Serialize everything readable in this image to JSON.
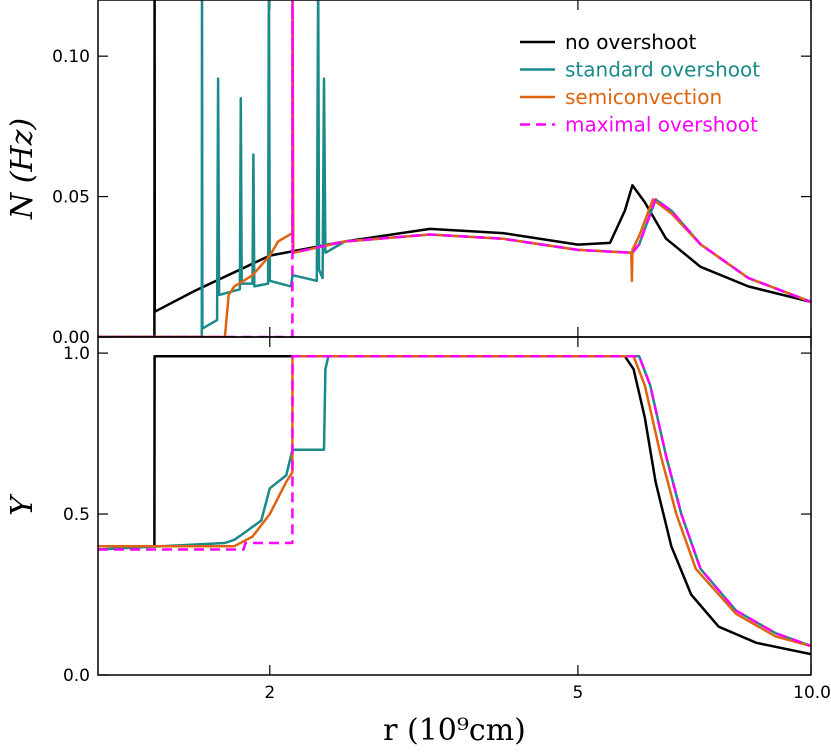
{
  "chart_data": [
    {
      "type": "line",
      "ylabel": "N (Hz)",
      "log_x": true,
      "legend": "upper right",
      "ylim": [
        0,
        0.12
      ],
      "yticks": [
        {
          "value": 0,
          "label": "0.00"
        },
        {
          "value": 0.05,
          "label": "0.05"
        },
        {
          "value": 0.1,
          "label": "0.10"
        }
      ],
      "series": [
        {
          "name": "no overshoot",
          "color": "#000000",
          "dashed": false,
          "x": [
            1.2,
            1.419,
            1.42,
            1.421,
            1.6,
            2.0,
            2.5,
            3.22,
            4.0,
            5.0,
            5.5,
            5.75,
            5.88,
            6.1,
            6.5,
            7.2,
            8.3,
            10
          ],
          "values": [
            0,
            0,
            0.13,
            0.009,
            0.0164,
            0.029,
            0.034,
            0.0385,
            0.037,
            0.0329,
            0.0335,
            0.045,
            0.054,
            0.048,
            0.035,
            0.025,
            0.018,
            0.0125
          ]
        },
        {
          "name": "standard overshoot",
          "color": "#1a8a8a",
          "dashed": false,
          "x": [
            1.2,
            1.634,
            1.635,
            1.637,
            1.71,
            1.715,
            1.72,
            1.83,
            1.835,
            1.84,
            1.9,
            1.905,
            1.91,
            1.99,
            1.995,
            2.0,
            2.13,
            2.14,
            2.3,
            2.31,
            2.315,
            2.34,
            2.35,
            2.36,
            2.5,
            3.22,
            4.0,
            5.0,
            5.88,
            6.0,
            6.3,
            6.6,
            7.2,
            8.3,
            10
          ],
          "values": [
            0,
            0,
            0.13,
            0.003,
            0.006,
            0.092,
            0.015,
            0.017,
            0.085,
            0.019,
            0.019,
            0.065,
            0.018,
            0.019,
            0.13,
            0.02,
            0.018,
            0.022,
            0.02,
            0.13,
            0.024,
            0.021,
            0.092,
            0.03,
            0.034,
            0.0365,
            0.035,
            0.031,
            0.03,
            0.033,
            0.049,
            0.045,
            0.033,
            0.021,
            0.0125
          ]
        },
        {
          "name": "semiconvection",
          "color": "#e0640f",
          "dashed": false,
          "x": [
            1.2,
            1.75,
            1.77,
            1.8,
            1.85,
            1.9,
            2.0,
            2.05,
            2.139,
            2.14,
            2.145,
            2.5,
            3.22,
            4.0,
            5.0,
            5.86,
            5.87,
            5.88,
            6.0,
            6.25,
            6.6,
            7.2,
            8.3,
            10
          ],
          "values": [
            0,
            0,
            0.015,
            0.018,
            0.02,
            0.022,
            0.029,
            0.034,
            0.037,
            0.13,
            0.03,
            0.034,
            0.0365,
            0.035,
            0.031,
            0.03,
            0.02,
            0.031,
            0.036,
            0.049,
            0.044,
            0.033,
            0.021,
            0.0125
          ]
        },
        {
          "name": "maximal overshoot",
          "color": "#ff00ff",
          "dashed": true,
          "x": [
            1.2,
            2.139,
            2.14,
            2.141,
            2.5,
            3.22,
            4.0,
            5.0,
            5.88,
            6.0,
            6.3,
            6.6,
            7.2,
            8.3,
            10
          ],
          "values": [
            0,
            0,
            0.13,
            0.03,
            0.034,
            0.0365,
            0.035,
            0.031,
            0.03,
            0.033,
            0.049,
            0.045,
            0.033,
            0.021,
            0.0125
          ]
        }
      ]
    },
    {
      "type": "line",
      "ylabel": "Y",
      "xlabel": "r (10⁹cm)",
      "log_x": true,
      "xlim": [
        1.2,
        10
      ],
      "xticks": [
        2,
        5,
        {
          "value": 10,
          "label": "10.0"
        }
      ],
      "ylim": [
        0,
        1.05
      ],
      "yticks": [
        {
          "value": 0,
          "label": "0.0"
        },
        {
          "value": 0.5,
          "label": "0.5"
        },
        {
          "value": 1,
          "label": "1.0"
        }
      ],
      "series": [
        {
          "color": "#000000",
          "dashed": false,
          "x": [
            1.2,
            1.419,
            1.42,
            5.75,
            5.9,
            6.1,
            6.3,
            6.6,
            7.0,
            7.6,
            8.5,
            10
          ],
          "values": [
            0.4,
            0.4,
            0.99,
            0.99,
            0.95,
            0.8,
            0.6,
            0.4,
            0.25,
            0.15,
            0.1,
            0.065
          ]
        },
        {
          "color": "#1a8a8a",
          "dashed": false,
          "x": [
            1.2,
            1.75,
            1.8,
            1.85,
            1.9,
            1.95,
            2.0,
            2.1,
            2.14,
            2.35,
            2.36,
            2.38,
            6.0,
            6.2,
            6.5,
            6.8,
            7.2,
            8.0,
            9.0,
            10
          ],
          "values": [
            0.39,
            0.41,
            0.42,
            0.44,
            0.46,
            0.48,
            0.58,
            0.62,
            0.7,
            0.7,
            0.95,
            0.99,
            0.99,
            0.9,
            0.68,
            0.5,
            0.33,
            0.2,
            0.13,
            0.09
          ]
        },
        {
          "color": "#e0640f",
          "dashed": false,
          "x": [
            1.2,
            1.8,
            1.9,
            2.0,
            2.1,
            2.139,
            2.14,
            5.9,
            6.1,
            6.4,
            6.7,
            7.1,
            8.0,
            9.0,
            10
          ],
          "values": [
            0.4,
            0.4,
            0.43,
            0.5,
            0.6,
            0.63,
            0.99,
            0.99,
            0.9,
            0.68,
            0.5,
            0.33,
            0.19,
            0.12,
            0.09
          ]
        },
        {
          "color": "#ff00ff",
          "dashed": true,
          "x": [
            1.2,
            1.85,
            1.86,
            2.139,
            2.14,
            6.0,
            6.2,
            6.5,
            6.8,
            7.2,
            8.0,
            9.0,
            10
          ],
          "values": [
            0.39,
            0.39,
            0.41,
            0.41,
            0.99,
            0.99,
            0.9,
            0.68,
            0.5,
            0.33,
            0.2,
            0.13,
            0.09
          ]
        }
      ]
    }
  ]
}
